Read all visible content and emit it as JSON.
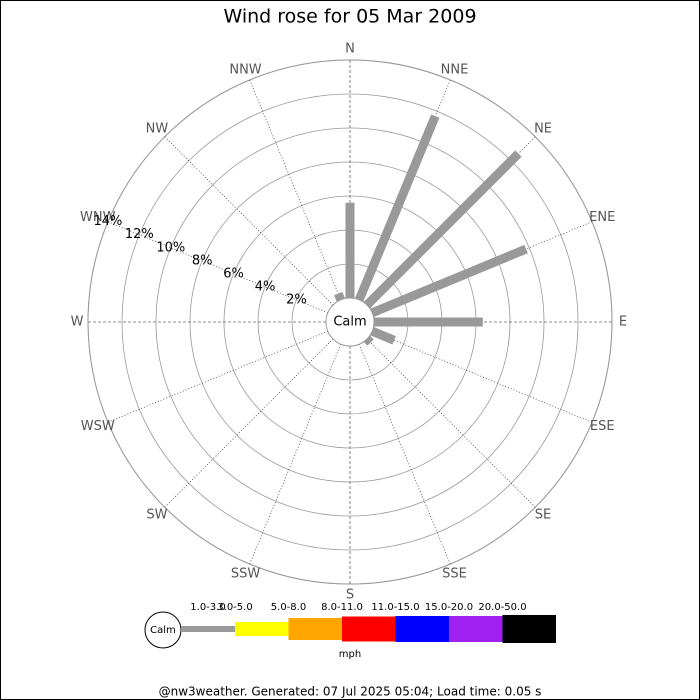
{
  "chart_data": {
    "type": "windrose",
    "title": "Wind rose for 05 Mar 2009",
    "directions": [
      "N",
      "NNE",
      "NE",
      "ENE",
      "E",
      "ESE",
      "SE",
      "SSE",
      "S",
      "SSW",
      "SW",
      "WSW",
      "W",
      "WNW",
      "NW",
      "NNW"
    ],
    "values": [
      5.6,
      11.7,
      12.6,
      9.8,
      6.4,
      1.4,
      0.3,
      0,
      0,
      0,
      0,
      0,
      0,
      0,
      0,
      0.4
    ],
    "rlim": [
      0,
      14
    ],
    "rticks": [
      {
        "value": 2,
        "label": "2%"
      },
      {
        "value": 4,
        "label": "4%"
      },
      {
        "value": 6,
        "label": "6%"
      },
      {
        "value": 8,
        "label": "8%"
      },
      {
        "value": 10,
        "label": "10%"
      },
      {
        "value": 12,
        "label": "12%"
      },
      {
        "value": 14,
        "label": "14%"
      }
    ],
    "calm_label": "Calm",
    "speed_bins": [
      {
        "name": "1.0-3.0",
        "color": "#999999"
      },
      {
        "name": "3.0-5.0",
        "color": "#ffff00"
      },
      {
        "name": "5.0-8.0",
        "color": "#ffa500"
      },
      {
        "name": "8.0-11.0",
        "color": "#ff0000"
      },
      {
        "name": "11.0-15.0",
        "color": "#0000ff"
      },
      {
        "name": "15.0-20.0",
        "color": "#a020f0"
      },
      {
        "name": "20.0-50.0",
        "color": "#000000"
      }
    ],
    "unit": "mph",
    "footer": "@nw3weather. Generated: 07 Jul 2025 05:04; Load time: 0.05 s"
  }
}
